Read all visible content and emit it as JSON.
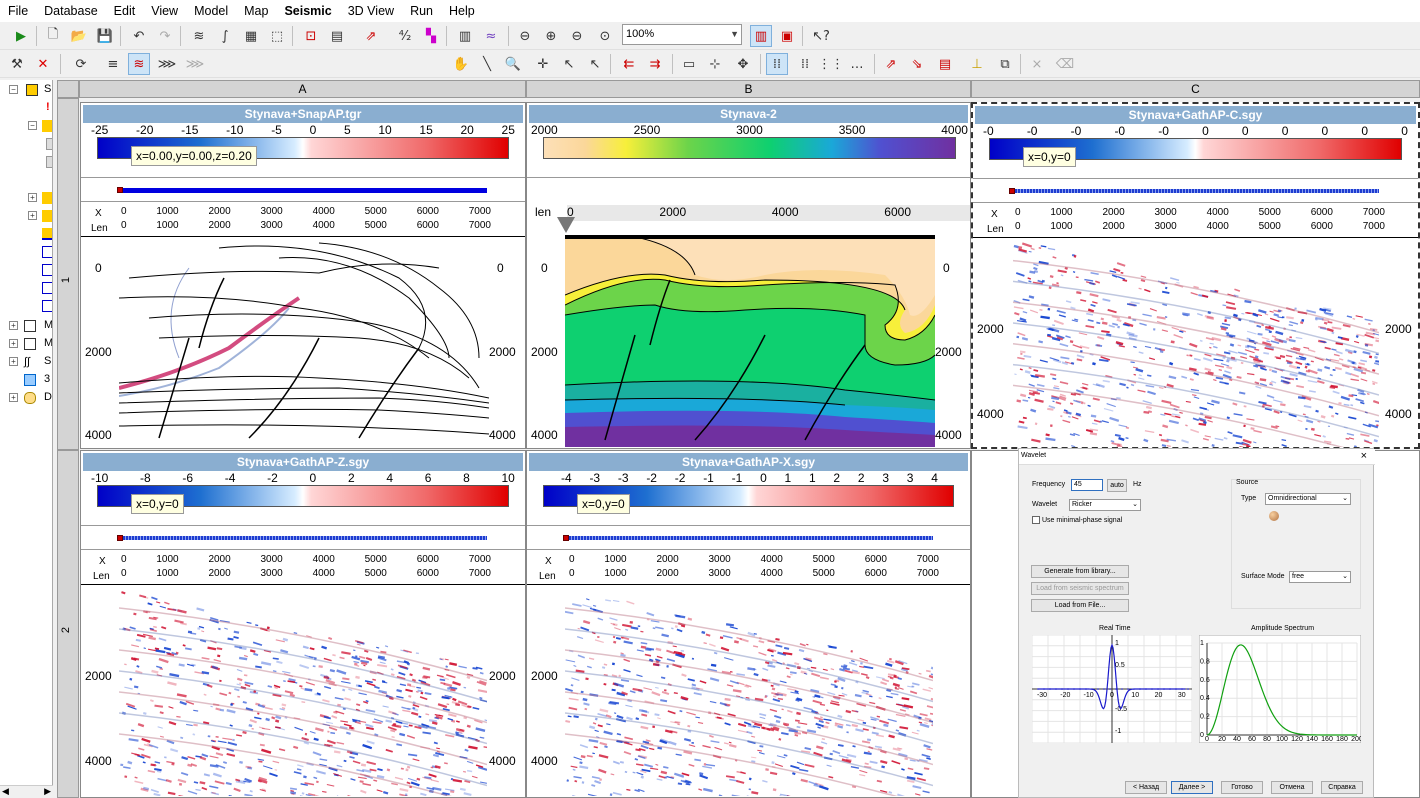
{
  "menubar": [
    "File",
    "Database",
    "Edit",
    "View",
    "Model",
    "Map",
    "Seismic",
    "3D View",
    "Run",
    "Help"
  ],
  "active_menu": "Seismic",
  "zoom_value": "100%",
  "tree_labels": [
    "S",
    "M",
    "M",
    "S",
    "3",
    "D"
  ],
  "columns": [
    "A",
    "B",
    "C"
  ],
  "rows": [
    "1",
    "2"
  ],
  "panels": {
    "a1": {
      "title": "Stynava+SnapAP.tgr",
      "scale": [
        "-25",
        "-20",
        "-15",
        "-10",
        "-5",
        "0",
        "5",
        "10",
        "15",
        "20",
        "25"
      ],
      "tooltip": "x=0.00,y=0.00,z=0.20",
      "axis_x_label": "X",
      "axis_len_label": "Len",
      "axis_x": [
        "0",
        "1000",
        "2000",
        "3000",
        "4000",
        "5000",
        "6000",
        "7000"
      ],
      "axis_len": [
        "0",
        "1000",
        "2000",
        "3000",
        "4000",
        "5000",
        "6000",
        "7000"
      ],
      "depths": [
        "0",
        "2000",
        "4000"
      ]
    },
    "b1": {
      "title": "Stynava-2",
      "scale": [
        "2000",
        "2500",
        "3000",
        "3500",
        "4000"
      ],
      "len_label": "len",
      "len_ticks": [
        "0",
        "2000",
        "4000",
        "6000"
      ],
      "marker": "1",
      "depths": [
        "0",
        "2000",
        "4000"
      ]
    },
    "c1": {
      "title": "Stynava+GathAP-C.sgy",
      "scale": [
        "-0",
        "-0",
        "-0",
        "-0",
        "-0",
        "0",
        "0",
        "0",
        "0",
        "0",
        "0"
      ],
      "tooltip": "x=0,y=0",
      "axis_x_label": "X",
      "axis_len_label": "Len",
      "axis_x": [
        "0",
        "1000",
        "2000",
        "3000",
        "4000",
        "5000",
        "6000",
        "7000"
      ],
      "axis_len": [
        "0",
        "1000",
        "2000",
        "3000",
        "4000",
        "5000",
        "6000",
        "7000"
      ],
      "depths": [
        "2000",
        "4000"
      ]
    },
    "a2": {
      "title": "Stynava+GathAP-Z.sgy",
      "scale": [
        "-10",
        "-8",
        "-6",
        "-4",
        "-2",
        "0",
        "2",
        "4",
        "6",
        "8",
        "10"
      ],
      "tooltip": "x=0,y=0",
      "axis_x_label": "X",
      "axis_len_label": "Len",
      "axis_x": [
        "0",
        "1000",
        "2000",
        "3000",
        "4000",
        "5000",
        "6000",
        "7000"
      ],
      "axis_len": [
        "0",
        "1000",
        "2000",
        "3000",
        "4000",
        "5000",
        "6000",
        "7000"
      ],
      "depths": [
        "2000",
        "4000"
      ]
    },
    "b2": {
      "title": "Stynava+GathAP-X.sgy",
      "scale": [
        "-4",
        "-3",
        "-3",
        "-2",
        "-2",
        "-1",
        "-1",
        "0",
        "1",
        "1",
        "2",
        "2",
        "3",
        "3",
        "4"
      ],
      "tooltip": "x=0,y=0",
      "axis_x_label": "X",
      "axis_len_label": "Len",
      "axis_x": [
        "0",
        "1000",
        "2000",
        "3000",
        "4000",
        "5000",
        "6000",
        "7000"
      ],
      "axis_len": [
        "0",
        "1000",
        "2000",
        "3000",
        "4000",
        "5000",
        "6000",
        "7000"
      ],
      "depths": [
        "2000",
        "4000"
      ]
    }
  },
  "wavelet_dialog": {
    "title": "Wavelet",
    "close": "×",
    "frequency_label": "Frequency",
    "frequency_value": "45",
    "auto_label": "auto",
    "hz_label": "Hz",
    "wavelet_label": "Wavelet",
    "wavelet_value": "Ricker",
    "minphase_label": "Use minimal-phase signal",
    "source_label": "Source",
    "type_label": "Type",
    "type_value": "Omnidirectional",
    "surface_label": "Surface Mode",
    "surface_value": "free",
    "btn_generate": "Generate from library...",
    "btn_load_seismic": "Load from seismic spectrum",
    "btn_load_file": "Load from File...",
    "real_time_title": "Real Time",
    "amp_title": "Amplitude Spectrum",
    "rt_x_ticks": [
      "-30",
      "-20",
      "-10",
      "0",
      "10",
      "20",
      "30"
    ],
    "rt_y_ticks": [
      "1",
      "0.5",
      "-0.5",
      "-1"
    ],
    "amp_x_ticks": [
      "0",
      "20",
      "40",
      "60",
      "80",
      "100",
      "120",
      "140",
      "160",
      "180",
      "200"
    ],
    "amp_y_ticks": [
      "1",
      "0.8",
      "0.6",
      "0.4",
      "0.2",
      "0"
    ],
    "btn_back": "< Назад",
    "btn_next": "Далее >",
    "btn_done": "Готово",
    "btn_cancel": "Отмена",
    "btn_help": "Справка"
  },
  "colors": {
    "title_bar": "#8aaed0",
    "accent_blue": "#1e6fd0",
    "tooltip_bg": "#ffffe1"
  }
}
